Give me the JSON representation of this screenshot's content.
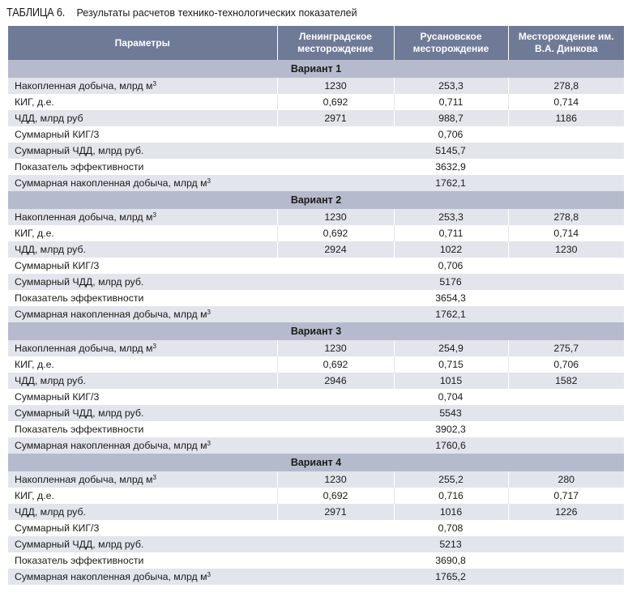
{
  "caption": {
    "label": "ТАБЛИЦА 6.",
    "text": "Результаты расчетов технико-технологических показателей"
  },
  "header": {
    "col_params": "Параметры",
    "col_leningrad": "Ленинградское месторождение",
    "col_rusanov": "Русановское месторождение",
    "col_dinkov": "Месторождение им. В.А. Динкова"
  },
  "variants": [
    {
      "title": "Вариант 1",
      "per_field": [
        {
          "label": "Накопленная добыча, млрд м",
          "sup": "3",
          "values": [
            "1230",
            "253,3",
            "278,8"
          ]
        },
        {
          "label": "КИГ, д.е.",
          "sup": "",
          "values": [
            "0,692",
            "0,711",
            "0,714"
          ]
        },
        {
          "label": "ЧДД, млрд руб",
          "sup": "",
          "values": [
            "2971",
            "988,7",
            "1186"
          ]
        }
      ],
      "summary": [
        {
          "label": "Суммарный КИГ/3",
          "sup": "",
          "value": "0,706"
        },
        {
          "label": "Суммарный ЧДД, млрд руб.",
          "sup": "",
          "value": "5145,7"
        },
        {
          "label": "Показатель эффективности",
          "sup": "",
          "value": "3632,9"
        },
        {
          "label": "Суммарная накопленная добыча, млрд м",
          "sup": "3",
          "value": "1762,1"
        }
      ]
    },
    {
      "title": "Вариант 2",
      "per_field": [
        {
          "label": "Накопленная добыча, млрд м",
          "sup": "3",
          "values": [
            "1230",
            "253,3",
            "278,8"
          ]
        },
        {
          "label": "КИГ, д.е.",
          "sup": "",
          "values": [
            "0,692",
            "0,711",
            "0,714"
          ]
        },
        {
          "label": "ЧДД, млрд руб.",
          "sup": "",
          "values": [
            "2924",
            "1022",
            "1230"
          ]
        }
      ],
      "summary": [
        {
          "label": "Суммарный КИГ/3",
          "sup": "",
          "value": "0,706"
        },
        {
          "label": "Суммарный ЧДД, млрд руб.",
          "sup": "",
          "value": "5176"
        },
        {
          "label": "Показатель эффективности",
          "sup": "",
          "value": "3654,3"
        },
        {
          "label": "Суммарная накопленная добыча, млрд м",
          "sup": "3",
          "value": "1762,1"
        }
      ]
    },
    {
      "title": "Вариант 3",
      "per_field": [
        {
          "label": "Накопленная добыча, млрд м",
          "sup": "3",
          "values": [
            "1230",
            "254,9",
            "275,7"
          ]
        },
        {
          "label": "КИГ, д.е.",
          "sup": "",
          "values": [
            "0,692",
            "0,715",
            "0,706"
          ]
        },
        {
          "label": "ЧДД, млрд руб.",
          "sup": "",
          "values": [
            "2946",
            "1015",
            "1582"
          ]
        }
      ],
      "summary": [
        {
          "label": "Суммарный КИГ/3",
          "sup": "",
          "value": "0,704"
        },
        {
          "label": "Суммарный ЧДД, млрд руб.",
          "sup": "",
          "value": "5543"
        },
        {
          "label": "Показатель эффективности",
          "sup": "",
          "value": "3902,3"
        },
        {
          "label": "Суммарная накопленная добыча, млрд м",
          "sup": "3",
          "value": "1760,6"
        }
      ]
    },
    {
      "title": "Вариант 4",
      "per_field": [
        {
          "label": "Накопленная добыча, млрд м",
          "sup": "3",
          "values": [
            "1230",
            "255,2",
            "280"
          ]
        },
        {
          "label": "КИГ, д.е.",
          "sup": "",
          "values": [
            "0,692",
            "0,716",
            "0,717"
          ]
        },
        {
          "label": "ЧДД, млрд руб.",
          "sup": "",
          "values": [
            "2971",
            "1016",
            "1226"
          ]
        }
      ],
      "summary": [
        {
          "label": "Суммарный КИГ/3",
          "sup": "",
          "value": "0,708"
        },
        {
          "label": "Суммарный ЧДД, млрд руб.",
          "sup": "",
          "value": "5213"
        },
        {
          "label": "Показатель эффективности",
          "sup": "",
          "value": "3690,8"
        },
        {
          "label": "Суммарная накопленная добыча, млрд м",
          "sup": "3",
          "value": "1765,2"
        }
      ]
    }
  ]
}
